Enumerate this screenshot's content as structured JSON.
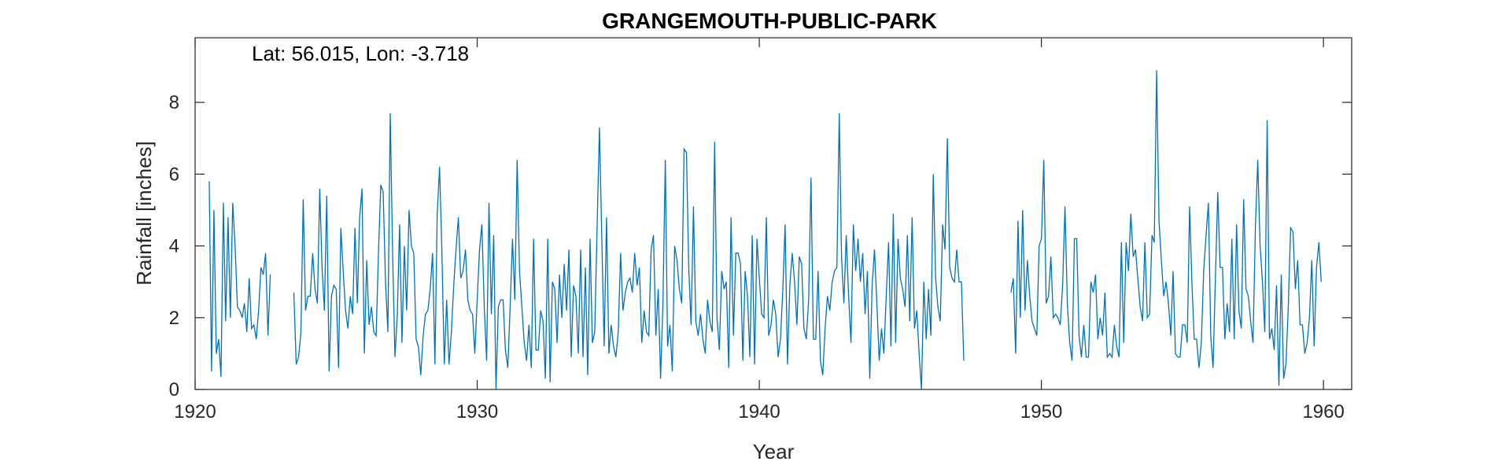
{
  "chart_data": {
    "type": "line",
    "title": "GRANGEMOUTH-PUBLIC-PARK",
    "annotation": "Lat: 56.015, Lon: -3.718",
    "xlabel": "Year",
    "ylabel": "Rainfall [inches]",
    "xlim": [
      1920,
      1961
    ],
    "ylim": [
      0,
      9.8
    ],
    "xticks": [
      1920,
      1930,
      1940,
      1950,
      1960
    ],
    "yticks": [
      0,
      2,
      4,
      6,
      8
    ],
    "grid": false,
    "line_color": "#0072BD",
    "axis_color": "#262626",
    "series": [
      {
        "segments": [
          {
            "start": 1920.5,
            "values": [
              5.8,
              0.5,
              5.0,
              1.0,
              1.4,
              0.35,
              5.2,
              1.9,
              4.8,
              2.0,
              5.2,
              4.0,
              2.3,
              2.2,
              2.0,
              2.4,
              1.6,
              3.1,
              1.7,
              1.8,
              1.4,
              2.2,
              3.4,
              3.2,
              3.8,
              1.5,
              3.2
            ]
          },
          {
            "start": 1923.5,
            "values": [
              2.7,
              0.7,
              0.9,
              1.6,
              5.3,
              2.2,
              2.6,
              2.6,
              3.8,
              2.8,
              2.4,
              5.6,
              3.4,
              2.2,
              5.4,
              0.5,
              2.6,
              2.9,
              2.8,
              0.6,
              4.5,
              3.3,
              2.2,
              1.7,
              2.6,
              2.1,
              4.5,
              2.4,
              4.8,
              5.6,
              1.0,
              3.6,
              1.8,
              2.3,
              1.6,
              1.5,
              3.8,
              5.7,
              5.5,
              3.0,
              1.6,
              7.7,
              3.8,
              0.9,
              2.1,
              4.6,
              1.3,
              4.0,
              2.2,
              5.0,
              4.0,
              3.8,
              1.4,
              1.2,
              0.4,
              1.5,
              2.1,
              2.2,
              2.8,
              3.8,
              0.7,
              4.9,
              6.2,
              3.8,
              0.7,
              2.5,
              0.7,
              1.6,
              2.9,
              3.9,
              4.8,
              3.1,
              3.3,
              3.9,
              2.5,
              2.2,
              2.1,
              1.0,
              2.5,
              3.9,
              4.6,
              2.3,
              0.8,
              5.2,
              2.1,
              4.3,
              0.0,
              2.3,
              2.5,
              2.5,
              1.1,
              0.6,
              2.3,
              4.2,
              2.5,
              6.4,
              3.3,
              2.3,
              1.3,
              0.8,
              1.8,
              0.6,
              4.2,
              1.1,
              1.1,
              2.2,
              1.9,
              0.3,
              4.2,
              0.2,
              3.0,
              2.8,
              1.3,
              3.2,
              2.0,
              3.5,
              2.2,
              3.9,
              0.9,
              2.9,
              2.6,
              1.0,
              3.9,
              0.9,
              3.4,
              0.4,
              4.2,
              1.3,
              1.6,
              4.5,
              7.3,
              4.2,
              1.2,
              4.8,
              1.0,
              1.8,
              1.2,
              0.9,
              1.6,
              3.8,
              2.2,
              2.7,
              3.0,
              3.1,
              2.7,
              3.8,
              2.9,
              3.4,
              1.3,
              2.2,
              1.6,
              1.5,
              3.9,
              4.3,
              1.5,
              2.8,
              0.3,
              2.4,
              6.4,
              1.2,
              1.8,
              0.5,
              4.0,
              3.6,
              2.8,
              2.4,
              6.7,
              6.6,
              3.4,
              1.8,
              5.1,
              1.9,
              1.5,
              2.1,
              1.4,
              1.0,
              2.5,
              1.9,
              1.6,
              6.9,
              2.0,
              1.1,
              3.3,
              2.8,
              3.0,
              0.6,
              4.8,
              1.5,
              3.8,
              3.8,
              3.5,
              0.8,
              3.3,
              2.6,
              0.9,
              4.3,
              0.7,
              4.2,
              3.1,
              2.1,
              2.0,
              4.8,
              1.5,
              1.8,
              2.5,
              2.1,
              0.9,
              1.4,
              2.8,
              4.6,
              0.7,
              2.9,
              3.8,
              3.0,
              1.8,
              3.7,
              3.5,
              1.7,
              1.4,
              2.5,
              5.9,
              1.4,
              1.4,
              3.3,
              0.8,
              0.4,
              1.7,
              2.6,
              2.2,
              3.0,
              3.3,
              3.4,
              7.7,
              3.7,
              2.4,
              4.3,
              2.6,
              1.3,
              4.6,
              3.3,
              4.2,
              3.0,
              3.8,
              2.1,
              3.3,
              0.3,
              2.9,
              3.9,
              2.4,
              0.8,
              1.7,
              1.0,
              2.6,
              4.1,
              1.2,
              4.9,
              1.3,
              4.2,
              3.1,
              2.8,
              2.3,
              4.3,
              1.9,
              4.8,
              1.7,
              2.2,
              1.0,
              0.0,
              3.0,
              1.4,
              2.8,
              1.5,
              6.0,
              3.1,
              2.3,
              1.9,
              4.6,
              3.9,
              7.0,
              3.4,
              3.1,
              3.0,
              3.9,
              3.0,
              3.0,
              0.8
            ]
          },
          {
            "start": 1948.92,
            "values": [
              2.7,
              3.1,
              1.0,
              4.7,
              2.0,
              5.0,
              2.2,
              3.6,
              2.6,
              1.9,
              1.7,
              1.5,
              4.0,
              4.2,
              6.4,
              2.4,
              2.6,
              3.7,
              2.0,
              2.1,
              2.0,
              1.8,
              2.9,
              5.1,
              2.4,
              1.3,
              0.8,
              4.2,
              4.2,
              1.5,
              0.9,
              1.8,
              0.9,
              0.9,
              3.0,
              2.7,
              3.2,
              1.4,
              2.0,
              1.5,
              2.7,
              0.9,
              1.0,
              0.9,
              1.8,
              1.2,
              0.9,
              4.1,
              1.3,
              4.1,
              3.3,
              4.9,
              3.7,
              3.9,
              3.1,
              2.3,
              1.9,
              4.1,
              2.0,
              2.1,
              4.3,
              4.1,
              8.9,
              4.7,
              3.6,
              2.6,
              3.0,
              2.4,
              1.5,
              3.3,
              1.0,
              0.9,
              0.9,
              1.8,
              1.8,
              1.3,
              5.1,
              3.0,
              1.4,
              1.4,
              0.6,
              1.3,
              3.3,
              4.3,
              5.2,
              1.5,
              0.6,
              3.1,
              5.5,
              3.4,
              3.4,
              1.4,
              2.4,
              1.6,
              4.2,
              1.4,
              4.6,
              2.2,
              1.7,
              5.3,
              2.8,
              2.6,
              1.9,
              1.3,
              4.5,
              6.4,
              4.0,
              3.0,
              1.6,
              7.5,
              1.4,
              1.7,
              1.1,
              2.9,
              0.1,
              3.2,
              0.3,
              0.7,
              2.3,
              4.5,
              4.4,
              2.8,
              3.6,
              1.8,
              1.8,
              1.0,
              1.3,
              2.0,
              3.6,
              1.2,
              3.4,
              4.1,
              3.0
            ]
          }
        ]
      }
    ]
  }
}
